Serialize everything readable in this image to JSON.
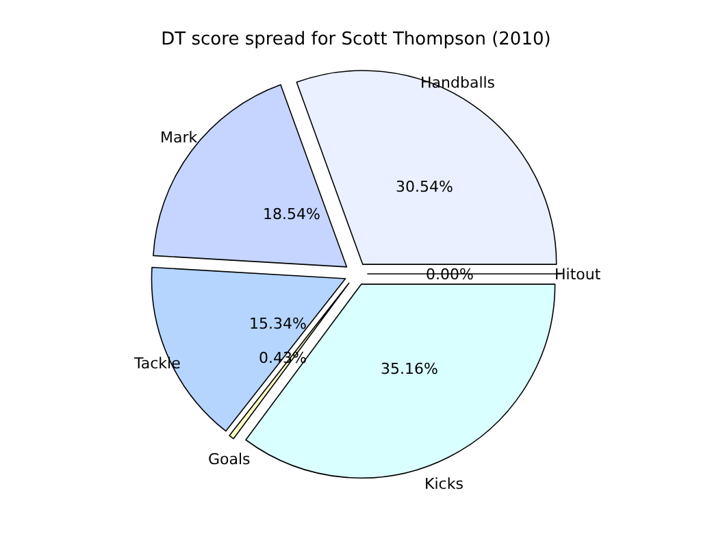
{
  "chart_data": {
    "type": "pie",
    "title": "DT score spread for Scott Thompson (2010)",
    "categories": [
      "Handballs",
      "Mark",
      "Tackle",
      "Goals",
      "Kicks",
      "Hitout"
    ],
    "values": [
      30.54,
      18.54,
      15.34,
      0.43,
      35.16,
      0.0
    ],
    "value_labels": [
      "30.54%",
      "18.54%",
      "15.34%",
      "0.43%",
      "35.16%",
      "0.00%"
    ],
    "colors": [
      "#eaf0ff",
      "#c5d5ff",
      "#b5d5ff",
      "#ffffc5",
      "#d9ffff",
      "#eaf0ff"
    ],
    "legend": false
  }
}
